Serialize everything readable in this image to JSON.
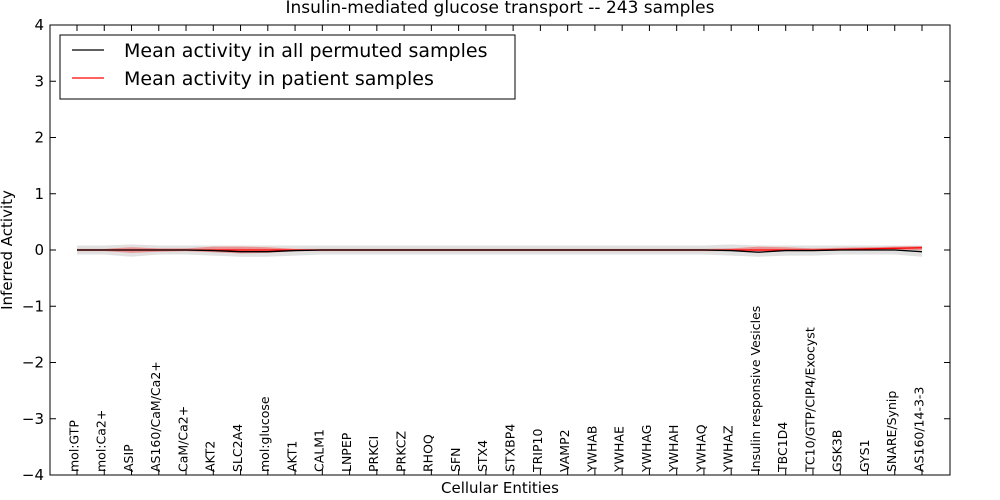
{
  "chart_data": {
    "type": "line",
    "title": "Insulin-mediated glucose transport -- 243 samples",
    "xlabel": "Cellular Entities",
    "ylabel": "Inferred Activity",
    "ylim": [
      -4,
      4
    ],
    "yticks": [
      "−4",
      "−3",
      "−2",
      "−1",
      "0",
      "1",
      "2",
      "3",
      "4"
    ],
    "categories": [
      "mol:GTP",
      "mol:Ca2+",
      "ASIP",
      "AS160/CaM/Ca2+",
      "CaM/Ca2+",
      "AKT2",
      "SLC2A4",
      "mol:glucose",
      "AKT1",
      "CALM1",
      "LNPEP",
      "PRKCI",
      "PRKCZ",
      "RHOQ",
      "SFN",
      "STX4",
      "STXBP4",
      "TRIP10",
      "VAMP2",
      "YWHAB",
      "YWHAE",
      "YWHAG",
      "YWHAH",
      "YWHAQ",
      "YWHAZ",
      "Insulin responsive Vesicles",
      "TBC1D4",
      "TC10/GTP/CIP4/Exocyst",
      "GSK3B",
      "GYS1",
      "SNARE/Synip",
      "AS160/14-3-3"
    ],
    "legend": {
      "position": "top-left"
    },
    "series": [
      {
        "name": "Mean activity in all permuted samples",
        "color": "#000000",
        "values": [
          0.0,
          0.0,
          0.0,
          0.0,
          0.0,
          -0.01,
          -0.03,
          -0.03,
          -0.01,
          0.0,
          0.0,
          0.0,
          0.0,
          0.0,
          0.0,
          0.0,
          0.0,
          0.0,
          0.0,
          0.0,
          0.0,
          0.0,
          0.0,
          0.0,
          -0.01,
          -0.04,
          -0.01,
          -0.01,
          0.0,
          0.0,
          0.0,
          -0.03
        ],
        "band_upper": [
          0.08,
          0.08,
          0.1,
          0.08,
          0.08,
          0.08,
          0.08,
          0.08,
          0.08,
          0.08,
          0.08,
          0.08,
          0.08,
          0.08,
          0.08,
          0.08,
          0.08,
          0.08,
          0.08,
          0.08,
          0.08,
          0.08,
          0.08,
          0.08,
          0.1,
          0.08,
          0.08,
          0.08,
          0.08,
          0.08,
          0.08,
          0.08
        ],
        "band_lower": [
          -0.08,
          -0.08,
          -0.12,
          -0.08,
          -0.08,
          -0.1,
          -0.12,
          -0.12,
          -0.1,
          -0.08,
          -0.08,
          -0.08,
          -0.08,
          -0.08,
          -0.08,
          -0.08,
          -0.08,
          -0.08,
          -0.08,
          -0.08,
          -0.08,
          -0.08,
          -0.08,
          -0.08,
          -0.1,
          -0.12,
          -0.1,
          -0.1,
          -0.08,
          -0.08,
          -0.08,
          -0.12
        ]
      },
      {
        "name": "Mean activity in patient samples",
        "color": "#ff0000",
        "values": [
          0.0,
          0.0,
          0.0,
          0.0,
          0.0,
          0.0,
          0.0,
          0.0,
          0.0,
          0.0,
          0.0,
          0.0,
          0.0,
          0.0,
          0.0,
          0.0,
          0.0,
          0.0,
          0.0,
          0.0,
          0.0,
          0.0,
          0.0,
          0.0,
          0.0,
          0.0,
          0.0,
          0.0,
          0.01,
          0.02,
          0.03,
          0.04
        ],
        "band_upper": [
          0.02,
          0.02,
          0.05,
          0.03,
          0.03,
          0.06,
          0.06,
          0.05,
          0.02,
          0.02,
          0.02,
          0.02,
          0.02,
          0.02,
          0.02,
          0.02,
          0.02,
          0.02,
          0.02,
          0.02,
          0.02,
          0.02,
          0.02,
          0.02,
          0.03,
          0.06,
          0.05,
          0.03,
          0.04,
          0.05,
          0.06,
          0.07
        ],
        "band_lower": [
          -0.02,
          -0.02,
          -0.05,
          -0.03,
          -0.02,
          -0.04,
          -0.06,
          -0.05,
          -0.02,
          -0.02,
          -0.02,
          -0.02,
          -0.02,
          -0.02,
          -0.02,
          -0.02,
          -0.02,
          -0.02,
          -0.02,
          -0.02,
          -0.02,
          -0.02,
          -0.02,
          -0.02,
          -0.02,
          -0.03,
          -0.02,
          -0.02,
          -0.01,
          0.0,
          0.0,
          0.0
        ]
      }
    ]
  }
}
